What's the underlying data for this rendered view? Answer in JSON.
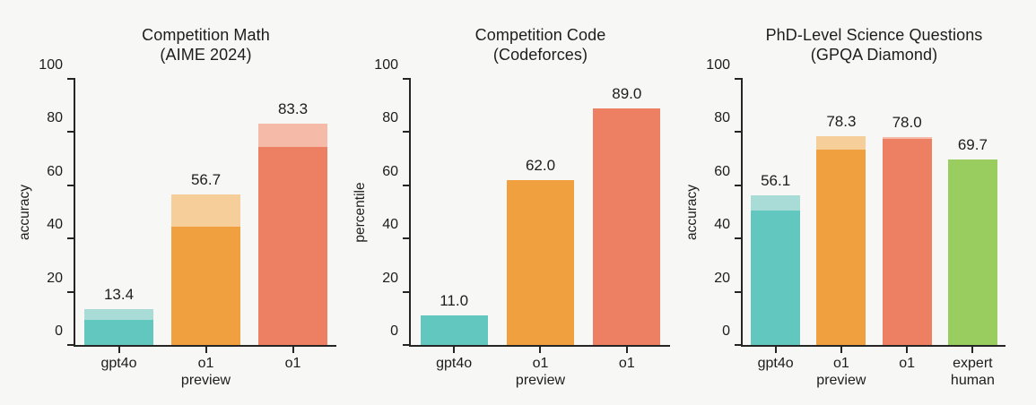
{
  "page": {
    "background": "#f7f7f5",
    "text_color": "#1d1d1b",
    "axis_color": "#252523"
  },
  "series_colors": {
    "gpt4o": {
      "solid": "#61c7bf",
      "light": "#a9dcd6"
    },
    "o1-preview": {
      "solid": "#f0a03e",
      "light": "#f6ce99"
    },
    "o1": {
      "solid": "#ed7f62",
      "light": "#f5baa8"
    },
    "expert-human": {
      "solid": "#9acd5f",
      "light": "#9acd5f"
    }
  },
  "chart_data": [
    {
      "type": "bar",
      "id": "competition-math",
      "title_line1": "Competition Math",
      "title_line2": "(AIME 2024)",
      "xlabel": "",
      "ylabel": "accuracy",
      "ylim": [
        0,
        100
      ],
      "yticks": [
        0,
        20,
        40,
        60,
        80,
        100
      ],
      "grid": false,
      "legend": "none",
      "categories": [
        "gpt4o",
        "o1 preview",
        "o1"
      ],
      "bars": [
        {
          "series": "gpt4o",
          "label_lines": [
            "gpt4o"
          ],
          "value": 13.4,
          "solid_value": 9.3,
          "value_label": "13.4"
        },
        {
          "series": "o1-preview",
          "label_lines": [
            "o1",
            "preview"
          ],
          "value": 56.7,
          "solid_value": 44.6,
          "value_label": "56.7"
        },
        {
          "series": "o1",
          "label_lines": [
            "o1"
          ],
          "value": 83.3,
          "solid_value": 74.4,
          "value_label": "83.3"
        }
      ]
    },
    {
      "type": "bar",
      "id": "competition-code",
      "title_line1": "Competition Code",
      "title_line2": "(Codeforces)",
      "xlabel": "",
      "ylabel": "percentile",
      "ylim": [
        0,
        100
      ],
      "yticks": [
        0,
        20,
        40,
        60,
        80,
        100
      ],
      "grid": false,
      "legend": "none",
      "categories": [
        "gpt4o",
        "o1 preview",
        "o1"
      ],
      "bars": [
        {
          "series": "gpt4o",
          "label_lines": [
            "gpt4o"
          ],
          "value": 11.0,
          "solid_value": 11.0,
          "value_label": "11.0"
        },
        {
          "series": "o1-preview",
          "label_lines": [
            "o1",
            "preview"
          ],
          "value": 62.0,
          "solid_value": 62.0,
          "value_label": "62.0"
        },
        {
          "series": "o1",
          "label_lines": [
            "o1"
          ],
          "value": 89.0,
          "solid_value": 89.0,
          "value_label": "89.0"
        }
      ]
    },
    {
      "type": "bar",
      "id": "gpqa-diamond",
      "title_line1": "PhD-Level Science Questions",
      "title_line2": "(GPQA Diamond)",
      "xlabel": "",
      "ylabel": "accuracy",
      "ylim": [
        0,
        100
      ],
      "yticks": [
        0,
        20,
        40,
        60,
        80,
        100
      ],
      "grid": false,
      "legend": "none",
      "categories": [
        "gpt4o",
        "o1 preview",
        "o1",
        "expert human"
      ],
      "bars": [
        {
          "series": "gpt4o",
          "label_lines": [
            "gpt4o"
          ],
          "value": 56.1,
          "solid_value": 50.6,
          "value_label": "56.1"
        },
        {
          "series": "o1-preview",
          "label_lines": [
            "o1",
            "preview"
          ],
          "value": 78.3,
          "solid_value": 73.3,
          "value_label": "78.3"
        },
        {
          "series": "o1",
          "label_lines": [
            "o1"
          ],
          "value": 78.0,
          "solid_value": 77.3,
          "value_label": "78.0"
        },
        {
          "series": "expert-human",
          "label_lines": [
            "expert",
            "human"
          ],
          "value": 69.7,
          "solid_value": 69.7,
          "value_label": "69.7"
        }
      ]
    }
  ]
}
